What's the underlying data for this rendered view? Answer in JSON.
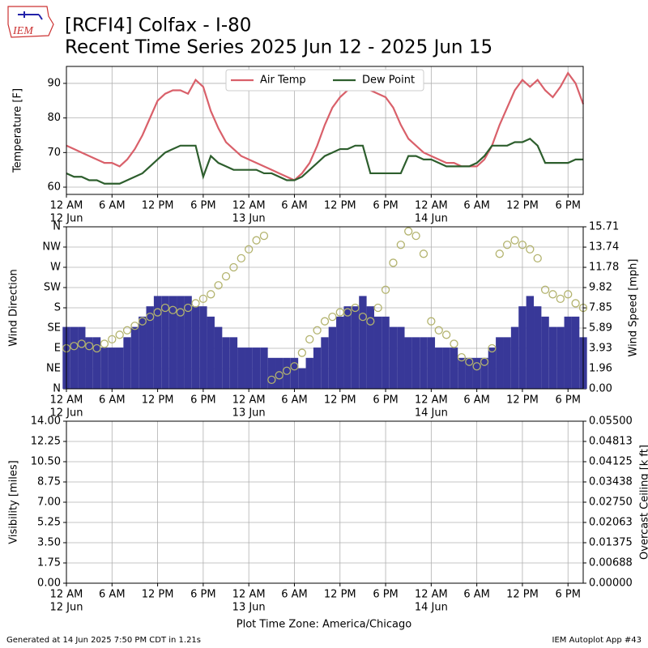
{
  "logo_text": "IEM",
  "title": "[RCFI4] Colfax - I-80",
  "subtitle": "Recent Time Series 2025 Jun 12 - 2025 Jun 15",
  "xlabel": "Plot Time Zone: America/Chicago",
  "footer_left": "Generated at 14 Jun 2025 7:50 PM CDT in 1.21s",
  "footer_right": "IEM Autoplot App #43",
  "chart_data": [
    {
      "type": "line",
      "ylabel": "Temperature [F]",
      "legend": "upper center",
      "grid": true,
      "xlim": [
        0,
        68
      ],
      "ylim": [
        57.9,
        94.9
      ],
      "yticks": [
        60,
        70,
        80,
        90
      ],
      "xticks": [
        {
          "value": 0,
          "label": "12 AM"
        },
        {
          "value": 6,
          "label": "6 AM"
        },
        {
          "value": 12,
          "label": "12 PM"
        },
        {
          "value": 18,
          "label": "6 PM"
        },
        {
          "value": 24,
          "label": "12 AM"
        },
        {
          "value": 30,
          "label": "6 AM"
        },
        {
          "value": 36,
          "label": "12 PM"
        },
        {
          "value": 42,
          "label": "6 PM"
        },
        {
          "value": 48,
          "label": "12 AM"
        },
        {
          "value": 54,
          "label": "6 AM"
        },
        {
          "value": 60,
          "label": "12 PM"
        },
        {
          "value": 66,
          "label": "6 PM"
        }
      ],
      "xtick_dates": [
        {
          "value": 0,
          "label": "12 Jun"
        },
        {
          "value": 24,
          "label": "13 Jun"
        },
        {
          "value": 48,
          "label": "14 Jun"
        }
      ],
      "x": [
        0,
        1,
        2,
        3,
        4,
        5,
        6,
        7,
        8,
        9,
        10,
        11,
        12,
        13,
        14,
        15,
        16,
        17,
        18,
        19,
        20,
        21,
        22,
        23,
        24,
        25,
        26,
        27,
        28,
        29,
        30,
        31,
        32,
        33,
        34,
        35,
        36,
        37,
        38,
        39,
        40,
        41,
        42,
        43,
        44,
        45,
        46,
        47,
        48,
        49,
        50,
        51,
        52,
        53,
        54,
        55,
        56,
        57,
        58,
        59,
        60,
        61,
        62,
        63,
        64,
        65,
        66,
        67,
        68
      ],
      "series": [
        {
          "name": "Air Temp",
          "color": "#d9606a",
          "values": [
            72,
            71,
            70,
            69,
            68,
            67,
            67,
            66,
            68,
            71,
            75,
            80,
            85,
            87,
            88,
            88,
            87,
            91,
            89,
            82,
            77,
            73,
            71,
            69,
            68,
            67,
            66,
            65,
            64,
            63,
            62,
            64,
            67,
            72,
            78,
            83,
            86,
            88,
            90,
            89,
            88,
            87,
            86,
            83,
            78,
            74,
            72,
            70,
            69,
            68,
            67,
            67,
            66,
            66,
            66,
            68,
            72,
            78,
            83,
            88,
            91,
            89,
            91,
            88,
            86,
            89,
            93,
            90,
            84
          ]
        },
        {
          "name": "Dew Point",
          "color": "#2d5e2d",
          "values": [
            64,
            63,
            63,
            62,
            62,
            61,
            61,
            61,
            62,
            63,
            64,
            66,
            68,
            70,
            71,
            72,
            72,
            72,
            63,
            69,
            67,
            66,
            65,
            65,
            65,
            65,
            64,
            64,
            63,
            62,
            62,
            63,
            65,
            67,
            69,
            70,
            71,
            71,
            72,
            72,
            64,
            64,
            64,
            64,
            64,
            69,
            69,
            68,
            68,
            67,
            66,
            66,
            66,
            66,
            67,
            69,
            72,
            72,
            72,
            73,
            73,
            74,
            72,
            67,
            67,
            67,
            67,
            68,
            68
          ]
        }
      ]
    },
    {
      "type": "wind",
      "ylabel": "Wind Direction",
      "y2label": "Wind Speed [mph]",
      "grid": true,
      "xlim": [
        0,
        68
      ],
      "ylim": [
        0,
        360
      ],
      "yticks": [
        {
          "value": 0,
          "label": "N"
        },
        {
          "value": 45,
          "label": "NE"
        },
        {
          "value": 90,
          "label": "E"
        },
        {
          "value": 135,
          "label": "SE"
        },
        {
          "value": 180,
          "label": "S"
        },
        {
          "value": 225,
          "label": "SW"
        },
        {
          "value": 270,
          "label": "W"
        },
        {
          "value": 315,
          "label": "NW"
        },
        {
          "value": 360,
          "label": "N"
        }
      ],
      "y2lim": [
        0,
        15.71
      ],
      "y2ticks": [
        {
          "value": 0,
          "label": "0.00"
        },
        1.96,
        3.93,
        5.89,
        7.85,
        9.82,
        11.78,
        13.74,
        15.71
      ],
      "xticks": [
        {
          "value": 0,
          "label": "12 AM"
        },
        {
          "value": 6,
          "label": "6 AM"
        },
        {
          "value": 12,
          "label": "12 PM"
        },
        {
          "value": 18,
          "label": "6 PM"
        },
        {
          "value": 24,
          "label": "12 AM"
        },
        {
          "value": 30,
          "label": "6 AM"
        },
        {
          "value": 36,
          "label": "12 PM"
        },
        {
          "value": 42,
          "label": "6 PM"
        },
        {
          "value": 48,
          "label": "12 AM"
        },
        {
          "value": 54,
          "label": "6 AM"
        },
        {
          "value": 60,
          "label": "12 PM"
        },
        {
          "value": 66,
          "label": "6 PM"
        }
      ],
      "xtick_dates": [
        {
          "value": 0,
          "label": "12 Jun"
        },
        {
          "value": 24,
          "label": "13 Jun"
        },
        {
          "value": 48,
          "label": "14 Jun"
        }
      ],
      "x": [
        0,
        1,
        2,
        3,
        4,
        5,
        6,
        7,
        8,
        9,
        10,
        11,
        12,
        13,
        14,
        15,
        16,
        17,
        18,
        19,
        20,
        21,
        22,
        23,
        24,
        25,
        26,
        27,
        28,
        29,
        30,
        31,
        32,
        33,
        34,
        35,
        36,
        37,
        38,
        39,
        40,
        41,
        42,
        43,
        44,
        45,
        46,
        47,
        48,
        49,
        50,
        51,
        52,
        53,
        54,
        55,
        56,
        57,
        58,
        59,
        60,
        61,
        62,
        63,
        64,
        65,
        66,
        67,
        68
      ],
      "series": [
        {
          "kind": "bar",
          "axis": "y2",
          "color": "#383898",
          "values": [
            6,
            6,
            6,
            5,
            5,
            4,
            4,
            4,
            5,
            6,
            7,
            8,
            9,
            9,
            9,
            9,
            9,
            8,
            8,
            7,
            6,
            5,
            5,
            4,
            4,
            4,
            4,
            3,
            3,
            3,
            3,
            2,
            3,
            4,
            5,
            6,
            7,
            8,
            8,
            9,
            8,
            7,
            7,
            6,
            6,
            5,
            5,
            5,
            5,
            4,
            4,
            4,
            3,
            3,
            3,
            3,
            4,
            5,
            5,
            6,
            8,
            9,
            8,
            7,
            6,
            6,
            7,
            7,
            5
          ]
        },
        {
          "kind": "scatter",
          "color": "#b3b36e",
          "values": [
            90,
            95,
            100,
            95,
            90,
            100,
            110,
            120,
            130,
            140,
            150,
            160,
            170,
            180,
            175,
            170,
            180,
            190,
            200,
            210,
            230,
            250,
            270,
            290,
            310,
            330,
            340,
            20,
            30,
            40,
            50,
            80,
            110,
            130,
            150,
            160,
            170,
            170,
            180,
            160,
            150,
            180,
            220,
            280,
            320,
            350,
            340,
            300,
            150,
            130,
            120,
            100,
            70,
            60,
            50,
            60,
            90,
            300,
            320,
            330,
            320,
            310,
            290,
            220,
            210,
            200,
            210,
            190,
            180
          ]
        }
      ]
    },
    {
      "type": "line",
      "ylabel": "Visibility [miles]",
      "y2label": "Overcast Ceiling [k ft]",
      "y2label_color": "#008000",
      "grid": true,
      "xlim": [
        0,
        68
      ],
      "ylim": [
        0,
        14
      ],
      "yticks": [
        {
          "value": 0,
          "label": "0.00"
        },
        1.75,
        {
          "value": 3.5,
          "label": "3.50"
        },
        5.25,
        {
          "value": 7,
          "label": "7.00"
        },
        8.75,
        {
          "value": 10.5,
          "label": "10.50"
        },
        12.25,
        {
          "value": 14,
          "label": "14.00"
        }
      ],
      "y2lim": [
        0,
        0.055
      ],
      "y2ticks": [
        {
          "value": 0,
          "label": "0.00000"
        },
        0.00688,
        0.01375,
        0.02063,
        {
          "value": 0.0275,
          "label": "0.02750"
        },
        0.03438,
        0.04125,
        0.04813,
        {
          "value": 0.055,
          "label": "0.05500"
        }
      ],
      "xticks": [
        {
          "value": 0,
          "label": "12 AM"
        },
        {
          "value": 6,
          "label": "6 AM"
        },
        {
          "value": 12,
          "label": "12 PM"
        },
        {
          "value": 18,
          "label": "6 PM"
        },
        {
          "value": 24,
          "label": "12 AM"
        },
        {
          "value": 30,
          "label": "6 AM"
        },
        {
          "value": 36,
          "label": "12 PM"
        },
        {
          "value": 42,
          "label": "6 PM"
        },
        {
          "value": 48,
          "label": "12 AM"
        },
        {
          "value": 54,
          "label": "6 AM"
        },
        {
          "value": 60,
          "label": "12 PM"
        },
        {
          "value": 66,
          "label": "6 PM"
        }
      ],
      "xtick_dates": [
        {
          "value": 0,
          "label": "12 Jun"
        },
        {
          "value": 24,
          "label": "13 Jun"
        },
        {
          "value": 48,
          "label": "14 Jun"
        }
      ],
      "series": []
    }
  ]
}
